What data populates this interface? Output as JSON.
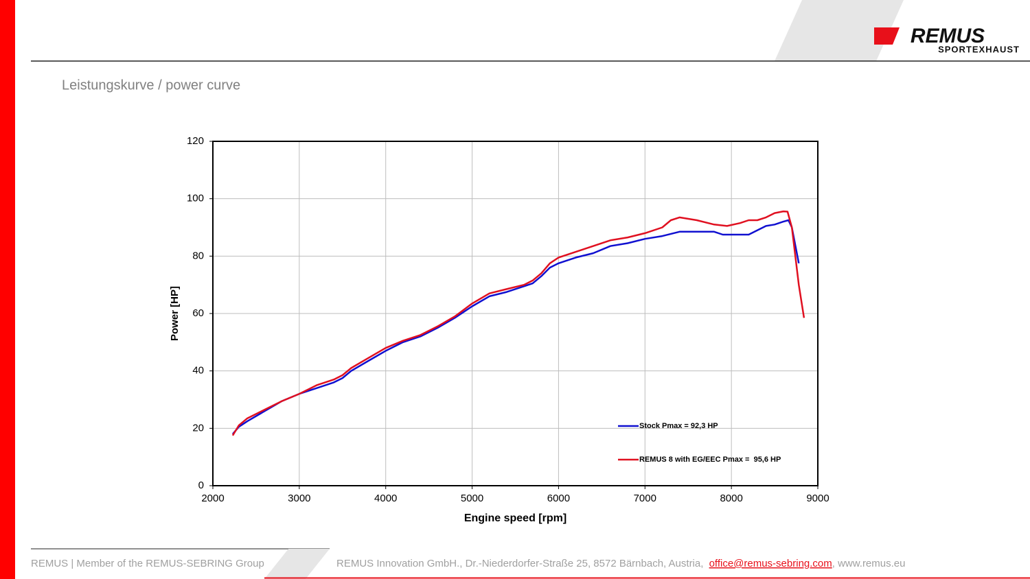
{
  "page": {
    "logo": "REMUS",
    "logo_sub": "SPORTEXHAUST",
    "heading": "Leistungskurve / power curve",
    "footer_left": "REMUS | Member of the REMUS-SEBRING Group",
    "footer_address": "REMUS Innovation GmbH., Dr.-Niederdorfer-Straße 25, 8572 Bärnbach, Austria,",
    "footer_email": "office@remus-sebring.com",
    "footer_web": ", www.remus.eu"
  },
  "chart_data": {
    "type": "line",
    "x_label": "Engine speed [rpm]",
    "y_label": "Power [HP]",
    "xlim": [
      2000,
      9000
    ],
    "xticks": [
      2000,
      3000,
      4000,
      5000,
      6000,
      7000,
      8000,
      9000
    ],
    "ylim": [
      0,
      120
    ],
    "yticks": [
      0,
      20,
      40,
      60,
      80,
      100,
      120
    ],
    "grid": true,
    "legend": "lower right",
    "series": [
      {
        "name": "Stock Pmax = 92,3 HP",
        "color": "#1010d0",
        "x": [
          2230,
          2300,
          2400,
          2600,
          2800,
          3000,
          3200,
          3400,
          3500,
          3600,
          3800,
          4000,
          4200,
          4400,
          4600,
          4800,
          5000,
          5200,
          5400,
          5600,
          5700,
          5800,
          5900,
          6000,
          6200,
          6400,
          6600,
          6800,
          7000,
          7200,
          7400,
          7600,
          7800,
          7900,
          8100,
          8200,
          8400,
          8500,
          8600,
          8660,
          8700,
          8780
        ],
        "values": [
          18,
          20.5,
          22.5,
          26,
          29.5,
          32,
          34,
          36,
          37.5,
          40,
          43.5,
          47,
          50,
          52,
          55,
          58.5,
          62.5,
          66,
          67.5,
          69.5,
          70.5,
          73,
          76,
          77.5,
          79.5,
          81,
          83.5,
          84.5,
          86,
          87,
          88.5,
          88.5,
          88.5,
          87.5,
          87.5,
          87.5,
          90.5,
          91,
          92,
          92.5,
          90,
          77.5
        ]
      },
      {
        "name": "REMUS 8 with EG/EEC Pmax =  95,6 HP",
        "color": "#e01020",
        "x": [
          2230,
          2300,
          2400,
          2600,
          2800,
          3000,
          3200,
          3400,
          3500,
          3600,
          3800,
          4000,
          4200,
          4400,
          4600,
          4800,
          5000,
          5200,
          5400,
          5600,
          5700,
          5800,
          5900,
          6000,
          6200,
          6400,
          6600,
          6800,
          7000,
          7200,
          7300,
          7400,
          7600,
          7800,
          7950,
          8100,
          8200,
          8300,
          8400,
          8500,
          8600,
          8650,
          8700,
          8780,
          8840
        ],
        "values": [
          17.5,
          21,
          23.5,
          26.5,
          29.5,
          32,
          35,
          37,
          38.5,
          41,
          44.5,
          48,
          50.5,
          52.5,
          55.5,
          59,
          63.5,
          67,
          68.5,
          70,
          71.5,
          74,
          77.5,
          79.5,
          81.5,
          83.5,
          85.5,
          86.5,
          88,
          90,
          92.5,
          93.5,
          92.5,
          91,
          90.5,
          91.5,
          92.5,
          92.5,
          93.5,
          95,
          95.6,
          95.5,
          90,
          70,
          58.5
        ]
      }
    ]
  }
}
